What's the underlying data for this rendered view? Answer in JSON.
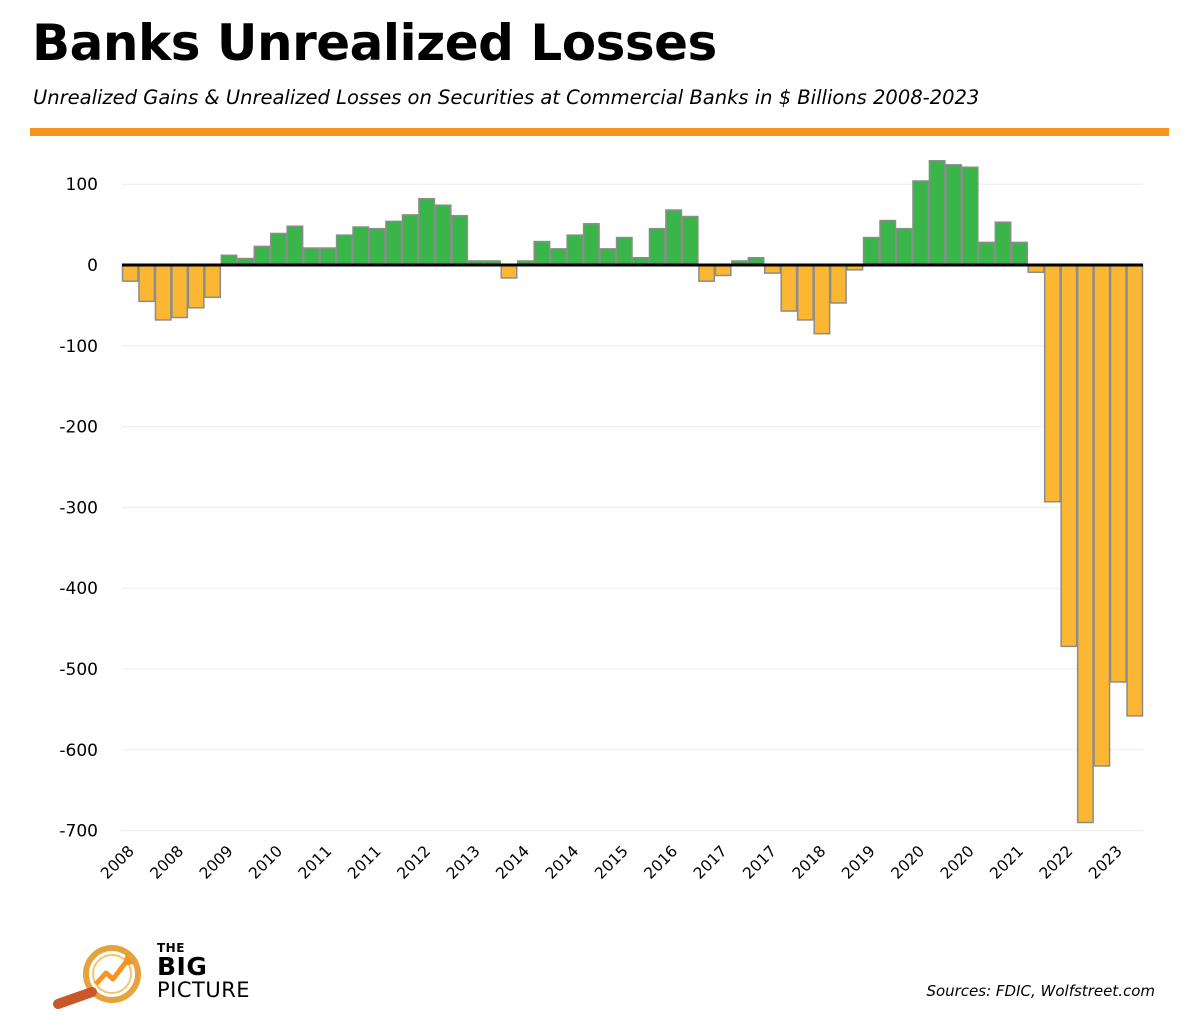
{
  "title": "Banks Unrealized Losses",
  "subtitle": "Unrealized Gains & Unrealized Losses on Securities at Commercial Banks in $ Billions 2008-2023",
  "source": "Sources: FDIC, Wolfstreet.com",
  "logo": {
    "line1": "THE",
    "line2": "BIG",
    "line3": "PICTURE"
  },
  "colors": {
    "accent": "#f7941d",
    "gain": "#39b54a",
    "loss": "#fbb634",
    "bar_outline": "#8c8c8c"
  },
  "chart_data": {
    "type": "bar",
    "title": "",
    "xlabel": "",
    "ylabel": "",
    "ylim": [
      -700,
      130
    ],
    "grid": true,
    "y_ticks": [
      100,
      0,
      -100,
      -200,
      -300,
      -400,
      -500,
      -600,
      -700
    ],
    "x_tick_labels": [
      "2008",
      "2008",
      "2009",
      "2010",
      "2011",
      "2011",
      "2012",
      "2013",
      "2014",
      "2014",
      "2015",
      "2016",
      "2017",
      "2017",
      "2018",
      "2019",
      "2020",
      "2020",
      "2021",
      "2022",
      "2023"
    ],
    "values": [
      -20,
      -45,
      -68,
      -65,
      -53,
      -40,
      12,
      8,
      23,
      39,
      48,
      21,
      21,
      37,
      47,
      45,
      54,
      62,
      82,
      74,
      61,
      5,
      5,
      -16,
      5,
      29,
      20,
      37,
      51,
      20,
      34,
      9,
      45,
      68,
      60,
      -20,
      -13,
      5,
      9,
      -10,
      -57,
      -68,
      -85,
      -47,
      -6,
      34,
      55,
      45,
      104,
      129,
      124,
      121,
      28,
      53,
      28,
      -9,
      -293,
      -472,
      -690,
      -620,
      -516,
      -558
    ]
  }
}
